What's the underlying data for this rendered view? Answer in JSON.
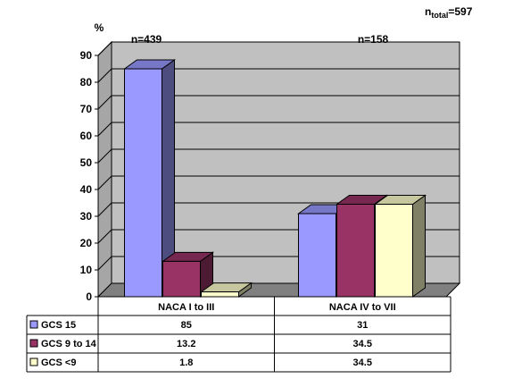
{
  "chart_data": {
    "type": "bar",
    "categories": [
      "NACA I to III",
      "NACA IV to VII"
    ],
    "category_notes": [
      "n=439",
      "n=158"
    ],
    "series": [
      {
        "name": "GCS 15",
        "values": [
          85,
          31
        ],
        "color": "#9999ff"
      },
      {
        "name": "GCS 9 to 14",
        "values": [
          13.2,
          34.5
        ],
        "color": "#993366"
      },
      {
        "name": "GCS <9",
        "values": [
          1.8,
          34.5
        ],
        "color": "#ffffcc"
      }
    ],
    "table_values": [
      [
        "85",
        "31"
      ],
      [
        "13.2",
        "34.5"
      ],
      [
        "1.8",
        "34.5"
      ]
    ],
    "ylabel": "%",
    "ylim": [
      0,
      90
    ],
    "yticks": [
      0,
      10,
      20,
      30,
      40,
      50,
      60,
      70,
      80,
      90
    ],
    "grid": true,
    "plot_wall_color": "#c0c0c0",
    "total_label": {
      "prefix": "n",
      "subscript": "total",
      "value": "=597"
    }
  }
}
